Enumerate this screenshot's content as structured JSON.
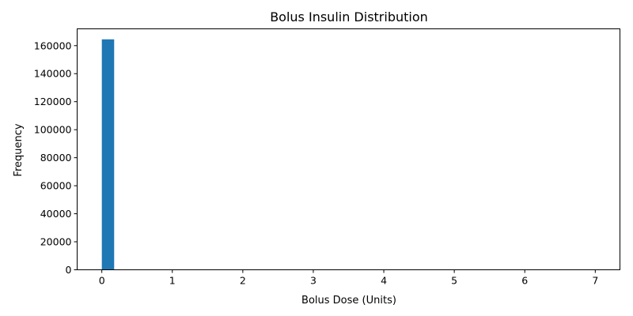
{
  "chart_data": {
    "type": "bar",
    "title": "Bolus Insulin Distribution",
    "xlabel": "Bolus Dose (Units)",
    "ylabel": "Frequency",
    "xlim": [
      -0.35,
      7.35
    ],
    "ylim": [
      0,
      172000
    ],
    "xticks": [
      0,
      1,
      2,
      3,
      4,
      5,
      6,
      7
    ],
    "yticks": [
      0,
      20000,
      40000,
      60000,
      80000,
      100000,
      120000,
      140000,
      160000
    ],
    "bins": [
      {
        "x0": 0.0,
        "x1": 0.175,
        "value": 164500
      }
    ],
    "grid": false,
    "legend": false,
    "bar_color": "#1f77b4"
  }
}
